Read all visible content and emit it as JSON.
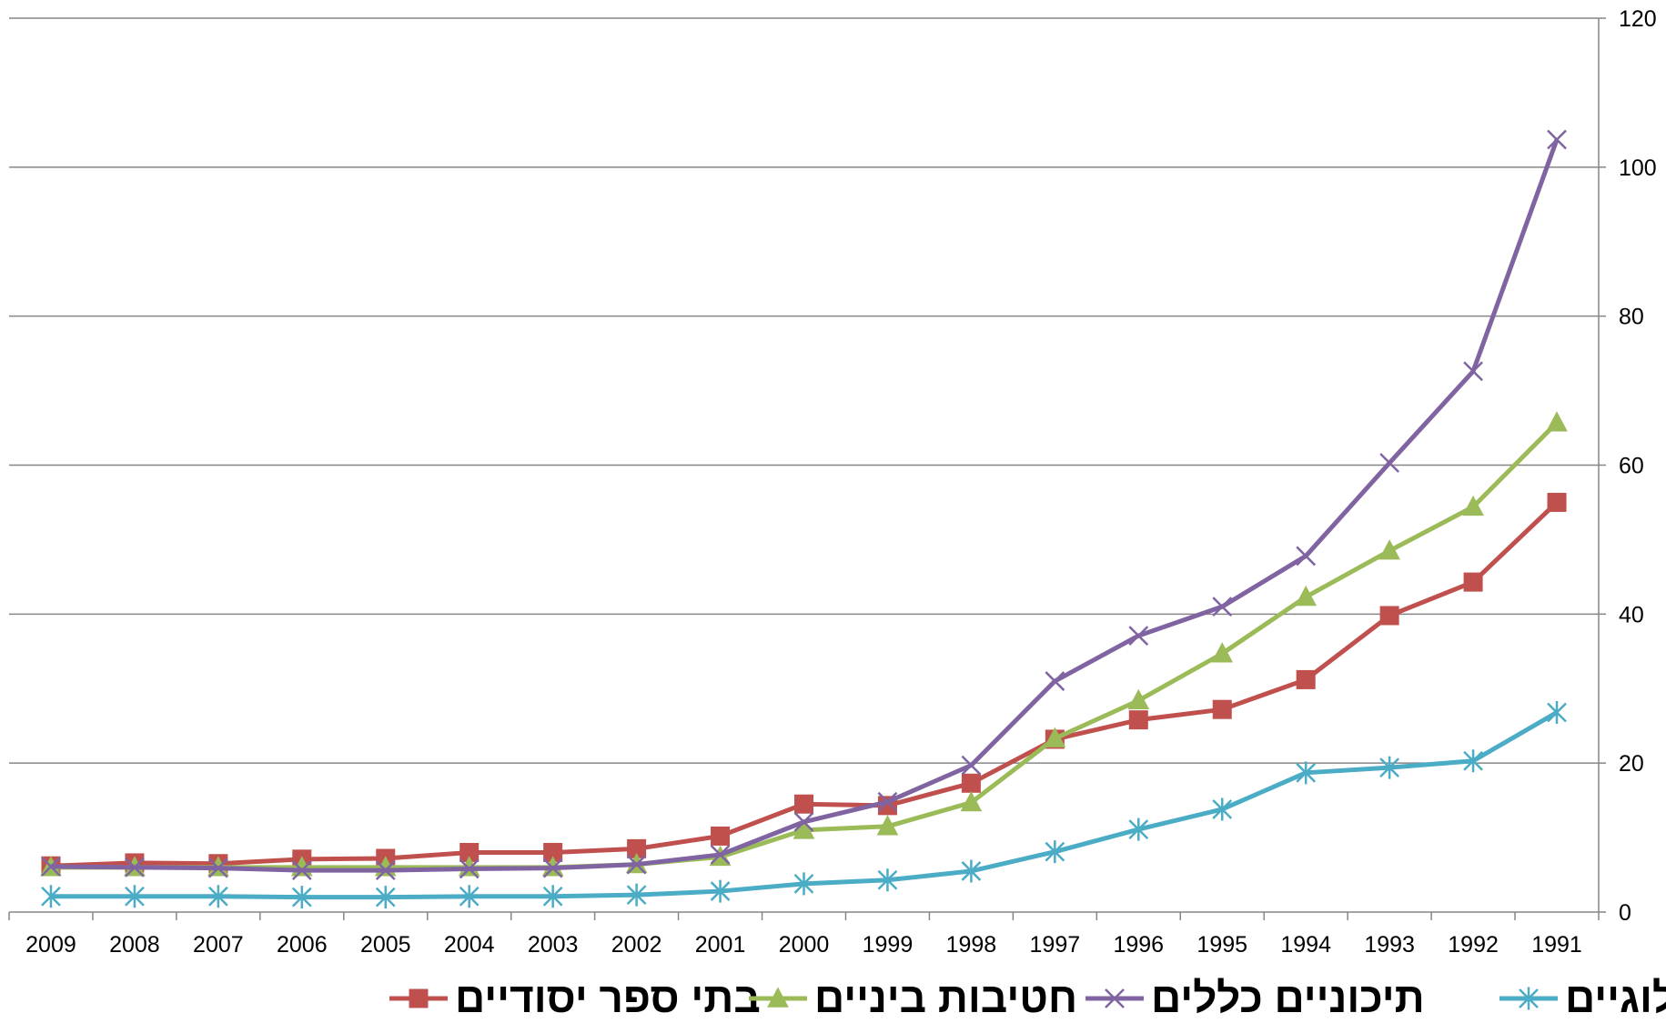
{
  "chart_data": {
    "type": "line",
    "categories": [
      "2009",
      "2008",
      "2007",
      "2006",
      "2005",
      "2004",
      "2003",
      "2002",
      "2001",
      "2000",
      "1999",
      "1998",
      "1997",
      "1996",
      "1995",
      "1994",
      "1993",
      "1992",
      "1991"
    ],
    "ylim": [
      0,
      120
    ],
    "yticks": [
      "0",
      "20",
      "40",
      "60",
      "80",
      "100",
      "120"
    ],
    "y_axis_side": "right",
    "grid": true,
    "legend_position": "bottom",
    "series": [
      {
        "name": "בתי ספר יסודיים",
        "color": "#c0504d",
        "marker": "square",
        "values": [
          6.2,
          6.6,
          6.5,
          7.1,
          7.2,
          8.0,
          8.0,
          8.5,
          10.2,
          14.5,
          14.3,
          17.3,
          23.2,
          25.8,
          27.2,
          31.2,
          39.8,
          44.3,
          55.0
        ]
      },
      {
        "name": "חטיבות ביניים",
        "color": "#9bbb59",
        "marker": "triangle",
        "values": [
          6.0,
          6.0,
          6.0,
          6.0,
          6.0,
          6.0,
          6.0,
          6.4,
          7.4,
          11.0,
          11.5,
          14.7,
          23.3,
          28.4,
          34.7,
          42.3,
          48.5,
          54.4,
          65.7
        ]
      },
      {
        "name": "תיכוניים כללים",
        "color": "#8064a2",
        "marker": "x",
        "values": [
          6.1,
          6.0,
          5.9,
          5.6,
          5.6,
          5.8,
          5.9,
          6.4,
          7.7,
          12.1,
          14.8,
          19.7,
          31.0,
          37.1,
          41.0,
          47.8,
          60.3,
          72.6,
          103.7
        ]
      },
      {
        "name": "תיכוניים טכנלוגיים",
        "color": "#4bacc6",
        "marker": "star",
        "values": [
          2.1,
          2.1,
          2.1,
          2.0,
          2.0,
          2.1,
          2.1,
          2.3,
          2.8,
          3.8,
          4.3,
          5.5,
          8.1,
          11.1,
          13.8,
          18.7,
          19.4,
          20.3,
          26.8
        ]
      }
    ]
  }
}
